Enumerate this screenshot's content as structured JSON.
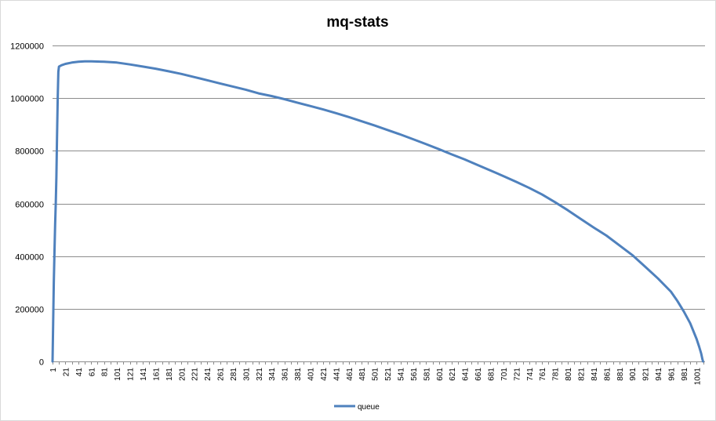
{
  "chart_data": {
    "type": "line",
    "title": "mq-stats",
    "xlabel": "",
    "ylabel": "",
    "ylim": [
      0,
      1200000
    ],
    "yticks": [
      0,
      200000,
      400000,
      600000,
      800000,
      1000000,
      1200000
    ],
    "x_range": [
      1,
      1014
    ],
    "xtick_step": 20,
    "grid": "horizontal",
    "legend_position": "bottom",
    "series": [
      {
        "name": "queue",
        "color": "#4f81bd",
        "points": [
          [
            1,
            0
          ],
          [
            2,
            150000
          ],
          [
            3,
            300000
          ],
          [
            4,
            420000
          ],
          [
            5,
            520000
          ],
          [
            6,
            600000
          ],
          [
            7,
            700000
          ],
          [
            8,
            850000
          ],
          [
            9,
            1000000
          ],
          [
            10,
            1100000
          ],
          [
            11,
            1120000
          ],
          [
            15,
            1125000
          ],
          [
            21,
            1130000
          ],
          [
            31,
            1135000
          ],
          [
            41,
            1138000
          ],
          [
            51,
            1140000
          ],
          [
            61,
            1140000
          ],
          [
            81,
            1138000
          ],
          [
            101,
            1135000
          ],
          [
            121,
            1128000
          ],
          [
            141,
            1120000
          ],
          [
            161,
            1112000
          ],
          [
            181,
            1102000
          ],
          [
            201,
            1092000
          ],
          [
            221,
            1080000
          ],
          [
            241,
            1068000
          ],
          [
            261,
            1056000
          ],
          [
            281,
            1044000
          ],
          [
            301,
            1032000
          ],
          [
            321,
            1018000
          ],
          [
            341,
            1008000
          ],
          [
            361,
            996000
          ],
          [
            381,
            983000
          ],
          [
            401,
            970000
          ],
          [
            421,
            957000
          ],
          [
            441,
            943000
          ],
          [
            461,
            928000
          ],
          [
            481,
            912000
          ],
          [
            501,
            896000
          ],
          [
            521,
            879000
          ],
          [
            541,
            862000
          ],
          [
            561,
            844000
          ],
          [
            581,
            825000
          ],
          [
            601,
            806000
          ],
          [
            621,
            786000
          ],
          [
            641,
            767000
          ],
          [
            661,
            746000
          ],
          [
            681,
            725000
          ],
          [
            701,
            704000
          ],
          [
            721,
            682000
          ],
          [
            741,
            659000
          ],
          [
            761,
            634000
          ],
          [
            781,
            605000
          ],
          [
            801,
            574000
          ],
          [
            821,
            541000
          ],
          [
            841,
            509000
          ],
          [
            861,
            478000
          ],
          [
            881,
            441000
          ],
          [
            901,
            404000
          ],
          [
            921,
            360000
          ],
          [
            941,
            315000
          ],
          [
            961,
            265000
          ],
          [
            971,
            230000
          ],
          [
            981,
            190000
          ],
          [
            991,
            145000
          ],
          [
            1001,
            85000
          ],
          [
            1005,
            55000
          ],
          [
            1008,
            30000
          ],
          [
            1010,
            8000
          ],
          [
            1011,
            0
          ]
        ]
      }
    ]
  }
}
